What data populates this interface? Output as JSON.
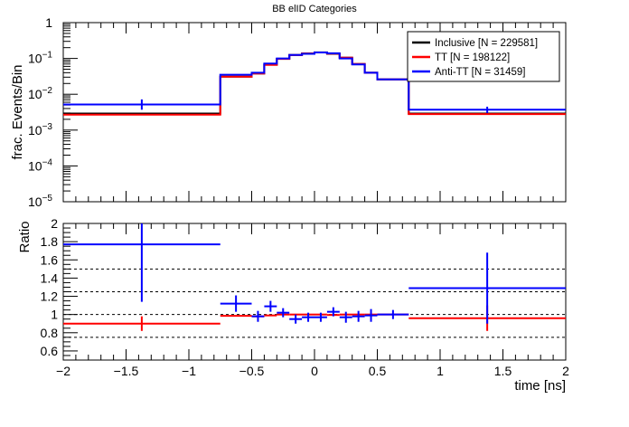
{
  "chart_data": [
    {
      "id": "top",
      "type": "step",
      "title": "BB elID Categories",
      "ylabel": "frac. Events/Bin",
      "xlabel": "",
      "xlim": [
        -2,
        2
      ],
      "ylim": [
        1e-05,
        1
      ],
      "yscale": "log",
      "y_ticks": [
        {
          "value": 1e-05,
          "base": "10",
          "exp": "−5"
        },
        {
          "value": 0.0001,
          "base": "10",
          "exp": "−4"
        },
        {
          "value": 0.001,
          "base": "10",
          "exp": "−3"
        },
        {
          "value": 0.01,
          "base": "10",
          "exp": "−2"
        },
        {
          "value": 0.1,
          "base": "10",
          "exp": "−1"
        },
        {
          "value": 1,
          "base": "1",
          "exp": ""
        }
      ],
      "bin_edges": [
        -2,
        -0.75,
        -0.5,
        -0.4,
        -0.3,
        -0.2,
        -0.1,
        0,
        0.1,
        0.2,
        0.3,
        0.4,
        0.5,
        0.75,
        2
      ],
      "legend_position": "top-right",
      "series": [
        {
          "name": "Inclusive [N = 229581]",
          "color": "#000000",
          "values": [
            0.0029,
            0.031,
            0.038,
            0.067,
            0.098,
            0.125,
            0.138,
            0.148,
            0.135,
            0.105,
            0.07,
            0.04,
            0.026,
            0.0029
          ]
        },
        {
          "name": "TT [N = 198122]",
          "color": "#ff0000",
          "values": [
            0.0027,
            0.031,
            0.038,
            0.066,
            0.097,
            0.124,
            0.137,
            0.147,
            0.136,
            0.105,
            0.07,
            0.04,
            0.026,
            0.0028
          ]
        },
        {
          "name": "Anti-TT [N = 31459]",
          "color": "#0000ff",
          "values": [
            0.0052,
            0.035,
            0.04,
            0.072,
            0.1,
            0.125,
            0.135,
            0.147,
            0.14,
            0.1,
            0.068,
            0.04,
            0.026,
            0.0037
          ],
          "errors": [
            [
              0.0037,
              0.0072
            ],
            null,
            null,
            null,
            null,
            null,
            null,
            null,
            null,
            null,
            null,
            null,
            null,
            [
              0.003,
              0.0045
            ]
          ]
        }
      ]
    },
    {
      "id": "ratio",
      "type": "errorbar",
      "ylabel": "Ratio",
      "xlabel": "time [ns]",
      "xlim": [
        -2,
        2
      ],
      "ylim": [
        0.5,
        2
      ],
      "y_ticks": [
        "0.6",
        "0.8",
        "1",
        "1.2",
        "1.4",
        "1.6",
        "1.8",
        "2"
      ],
      "x_ticks": [
        "−2",
        "−1.5",
        "−1",
        "−0.5",
        "0",
        "0.5",
        "1",
        "1.5",
        "2"
      ],
      "reference_lines": [
        0.75,
        1.0,
        1.25,
        1.5
      ],
      "series": [
        {
          "name": "TT / Inclusive",
          "color": "#ff0000",
          "points": [
            {
              "x": -1.375,
              "xlo": -2,
              "xhi": -0.75,
              "y": 0.9,
              "ylo": 0.82,
              "yhi": 0.98
            },
            {
              "x": -0.625,
              "xlo": -0.75,
              "xhi": -0.5,
              "y": 0.985
            },
            {
              "x": -0.45,
              "xlo": -0.5,
              "xhi": -0.4,
              "y": 0.98
            },
            {
              "x": -0.35,
              "xlo": -0.4,
              "xhi": -0.3,
              "y": 0.99
            },
            {
              "x": -0.25,
              "xlo": -0.3,
              "xhi": -0.2,
              "y": 1.0
            },
            {
              "x": -0.15,
              "xlo": -0.2,
              "xhi": -0.1,
              "y": 1.0
            },
            {
              "x": -0.05,
              "xlo": -0.1,
              "xhi": 0,
              "y": 1.0
            },
            {
              "x": 0.05,
              "xlo": 0,
              "xhi": 0.1,
              "y": 1.0
            },
            {
              "x": 0.15,
              "xlo": 0.1,
              "xhi": 0.2,
              "y": 0.995
            },
            {
              "x": 0.25,
              "xlo": 0.2,
              "xhi": 0.3,
              "y": 1.0
            },
            {
              "x": 0.35,
              "xlo": 0.3,
              "xhi": 0.4,
              "y": 1.0
            },
            {
              "x": 0.45,
              "xlo": 0.4,
              "xhi": 0.5,
              "y": 1.0
            },
            {
              "x": 0.625,
              "xlo": 0.5,
              "xhi": 0.75,
              "y": 1.0
            },
            {
              "x": 1.375,
              "xlo": 0.75,
              "xhi": 2,
              "y": 0.96,
              "ylo": 0.82,
              "yhi": 1.1
            }
          ]
        },
        {
          "name": "Anti-TT / Inclusive",
          "color": "#0000ff",
          "points": [
            {
              "x": -1.375,
              "xlo": -2,
              "xhi": -0.75,
              "y": 1.77,
              "ylo": 1.14,
              "yhi": 2.0
            },
            {
              "x": -0.625,
              "xlo": -0.75,
              "xhi": -0.5,
              "y": 1.12,
              "ylo": 1.03,
              "yhi": 1.21
            },
            {
              "x": -0.45,
              "xlo": -0.5,
              "xhi": -0.4,
              "y": 0.98,
              "ylo": 0.92,
              "yhi": 1.04
            },
            {
              "x": -0.35,
              "xlo": -0.4,
              "xhi": -0.3,
              "y": 1.09,
              "ylo": 1.03,
              "yhi": 1.15
            },
            {
              "x": -0.25,
              "xlo": -0.3,
              "xhi": -0.2,
              "y": 1.02,
              "ylo": 0.97,
              "yhi": 1.07
            },
            {
              "x": -0.15,
              "xlo": -0.2,
              "xhi": -0.1,
              "y": 0.95,
              "ylo": 0.9,
              "yhi": 1.0
            },
            {
              "x": -0.05,
              "xlo": -0.1,
              "xhi": 0,
              "y": 0.97,
              "ylo": 0.92,
              "yhi": 1.02
            },
            {
              "x": 0.05,
              "xlo": 0,
              "xhi": 0.1,
              "y": 0.97,
              "ylo": 0.92,
              "yhi": 1.02
            },
            {
              "x": 0.15,
              "xlo": 0.1,
              "xhi": 0.2,
              "y": 1.03,
              "ylo": 0.98,
              "yhi": 1.08
            },
            {
              "x": 0.25,
              "xlo": 0.2,
              "xhi": 0.3,
              "y": 0.97,
              "ylo": 0.91,
              "yhi": 1.03
            },
            {
              "x": 0.35,
              "xlo": 0.3,
              "xhi": 0.4,
              "y": 0.98,
              "ylo": 0.92,
              "yhi": 1.04
            },
            {
              "x": 0.45,
              "xlo": 0.4,
              "xhi": 0.5,
              "y": 0.99,
              "ylo": 0.92,
              "yhi": 1.06
            },
            {
              "x": 0.625,
              "xlo": 0.5,
              "xhi": 0.75,
              "y": 1.0,
              "ylo": 0.95,
              "yhi": 1.05
            },
            {
              "x": 1.375,
              "xlo": 0.75,
              "xhi": 2,
              "y": 1.29,
              "ylo": 0.9,
              "yhi": 1.68
            }
          ]
        }
      ]
    }
  ]
}
